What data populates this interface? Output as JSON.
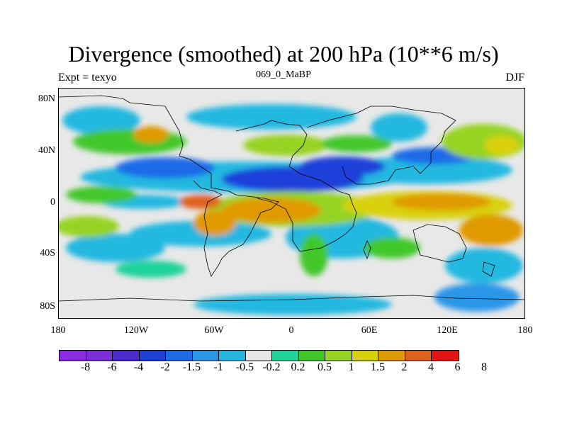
{
  "title": "Divergence (smoothed) at 200 hPa (10**6 m/s)",
  "subtitle_left": "Expt = texyo",
  "subtitle_center": "069_0_MaBP",
  "subtitle_right": "DJF",
  "map": {
    "projection": "cylindrical-equidistant",
    "missing_or_near_zero_color": "#e8e8e8",
    "lat_labels": [
      "80N",
      "40N",
      "0",
      "40S",
      "80S"
    ],
    "lon_labels": [
      "180",
      "120W",
      "60W",
      "0",
      "60E",
      "120E",
      "180"
    ]
  },
  "colorbar": {
    "colors": [
      "#8a2be2",
      "#7b2fd8",
      "#4b2ad0",
      "#1f3fd9",
      "#1e6be8",
      "#2a96e8",
      "#24b8e0",
      "#e6e6e6",
      "#1fd39a",
      "#42c72a",
      "#96d321",
      "#d9d10e",
      "#e09a06",
      "#e0621a",
      "#e01414"
    ],
    "labels": [
      "-8",
      "-6",
      "-4",
      "-2",
      "-1.5",
      "-1",
      "-0.5",
      "-0.2",
      "0.2",
      "0.5",
      "1",
      "1.5",
      "2",
      "4",
      "6",
      "8"
    ]
  }
}
